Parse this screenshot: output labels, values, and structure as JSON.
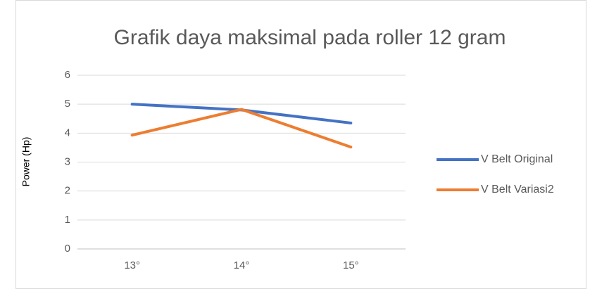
{
  "chart_data": {
    "type": "line",
    "title": "Grafik daya maksimal pada roller 12 gram",
    "y_label": "Power (Hp)",
    "categories": [
      "13°",
      "14°",
      "15°"
    ],
    "series": [
      {
        "name": "V Belt Original",
        "color": "#4472c4",
        "values": [
          5.0,
          4.8,
          4.35
        ]
      },
      {
        "name": "V Belt Variasi2",
        "color": "#ed7d31",
        "values": [
          3.93,
          4.82,
          3.52
        ]
      }
    ],
    "ylim": [
      0,
      6
    ],
    "yticks": [
      0,
      1,
      2,
      3,
      4,
      5,
      6
    ],
    "grid": true,
    "legend": "right"
  }
}
